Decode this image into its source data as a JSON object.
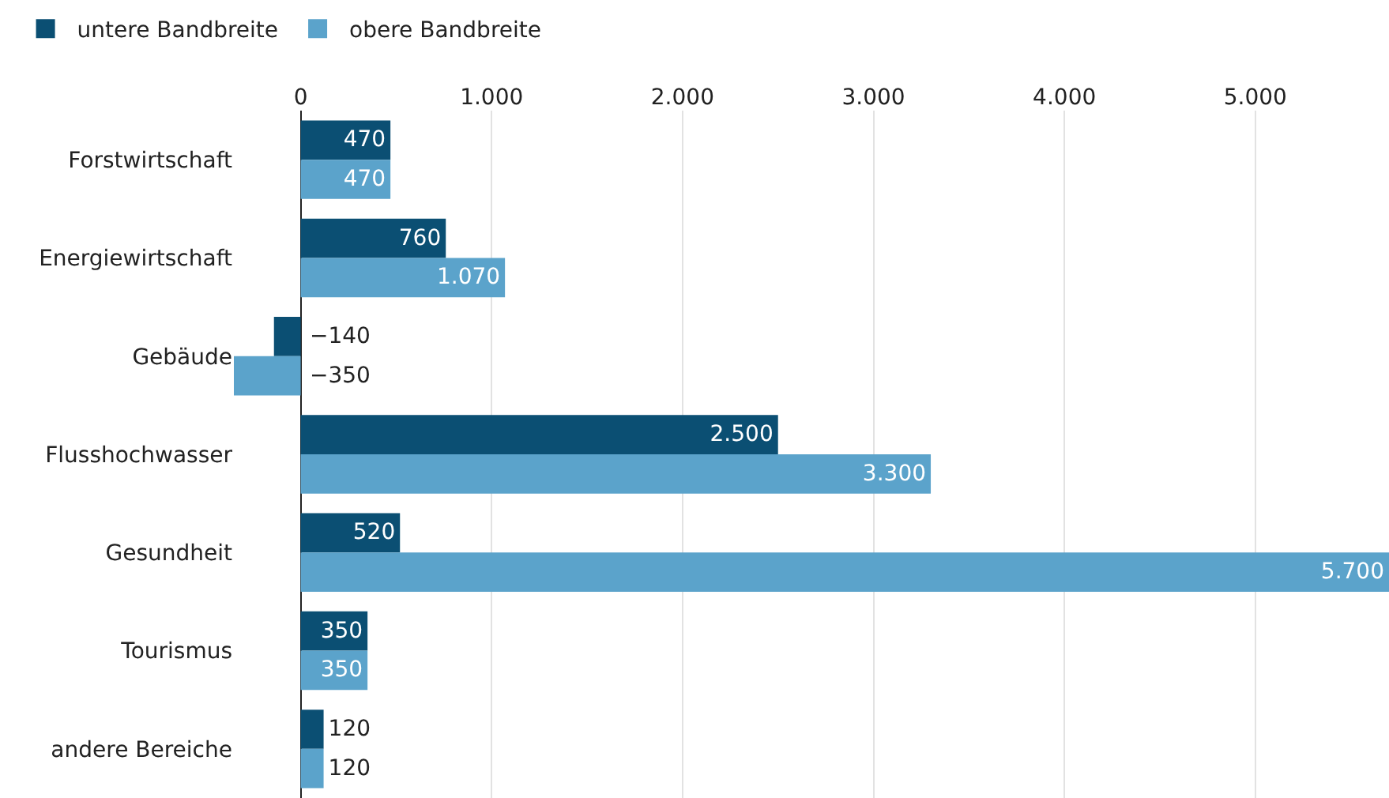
{
  "chart_data": {
    "type": "bar",
    "orientation": "horizontal",
    "categories": [
      "Forstwirtschaft",
      "Energiewirtschaft",
      "Gebäude",
      "Flusshochwasser",
      "Gesundheit",
      "Tourismus",
      "andere Bereiche"
    ],
    "series": [
      {
        "name": "untere Bandbreite",
        "color": "#0b4f73",
        "values": [
          470,
          760,
          -140,
          2500,
          520,
          350,
          120
        ],
        "value_labels": [
          "470",
          "760",
          "−140",
          "2.500",
          "520",
          "350",
          "120"
        ]
      },
      {
        "name": "obere Bandbreite",
        "color": "#5ba3cb",
        "values": [
          470,
          1070,
          -350,
          3300,
          5700,
          350,
          120
        ],
        "value_labels": [
          "470",
          "1.070",
          "−350",
          "3.300",
          "5.700",
          "350",
          "120"
        ]
      }
    ],
    "xlim": [
      -350,
      5700
    ],
    "xticks": [
      0,
      {
        "value": 1000,
        "label": "1.000"
      },
      {
        "value": 2000,
        "label": "2.000"
      },
      {
        "value": 3000,
        "label": "3.000"
      },
      {
        "value": 4000,
        "label": "4.000"
      },
      {
        "value": 5000,
        "label": "5.000"
      }
    ],
    "grid": "x",
    "legend": "top left"
  }
}
